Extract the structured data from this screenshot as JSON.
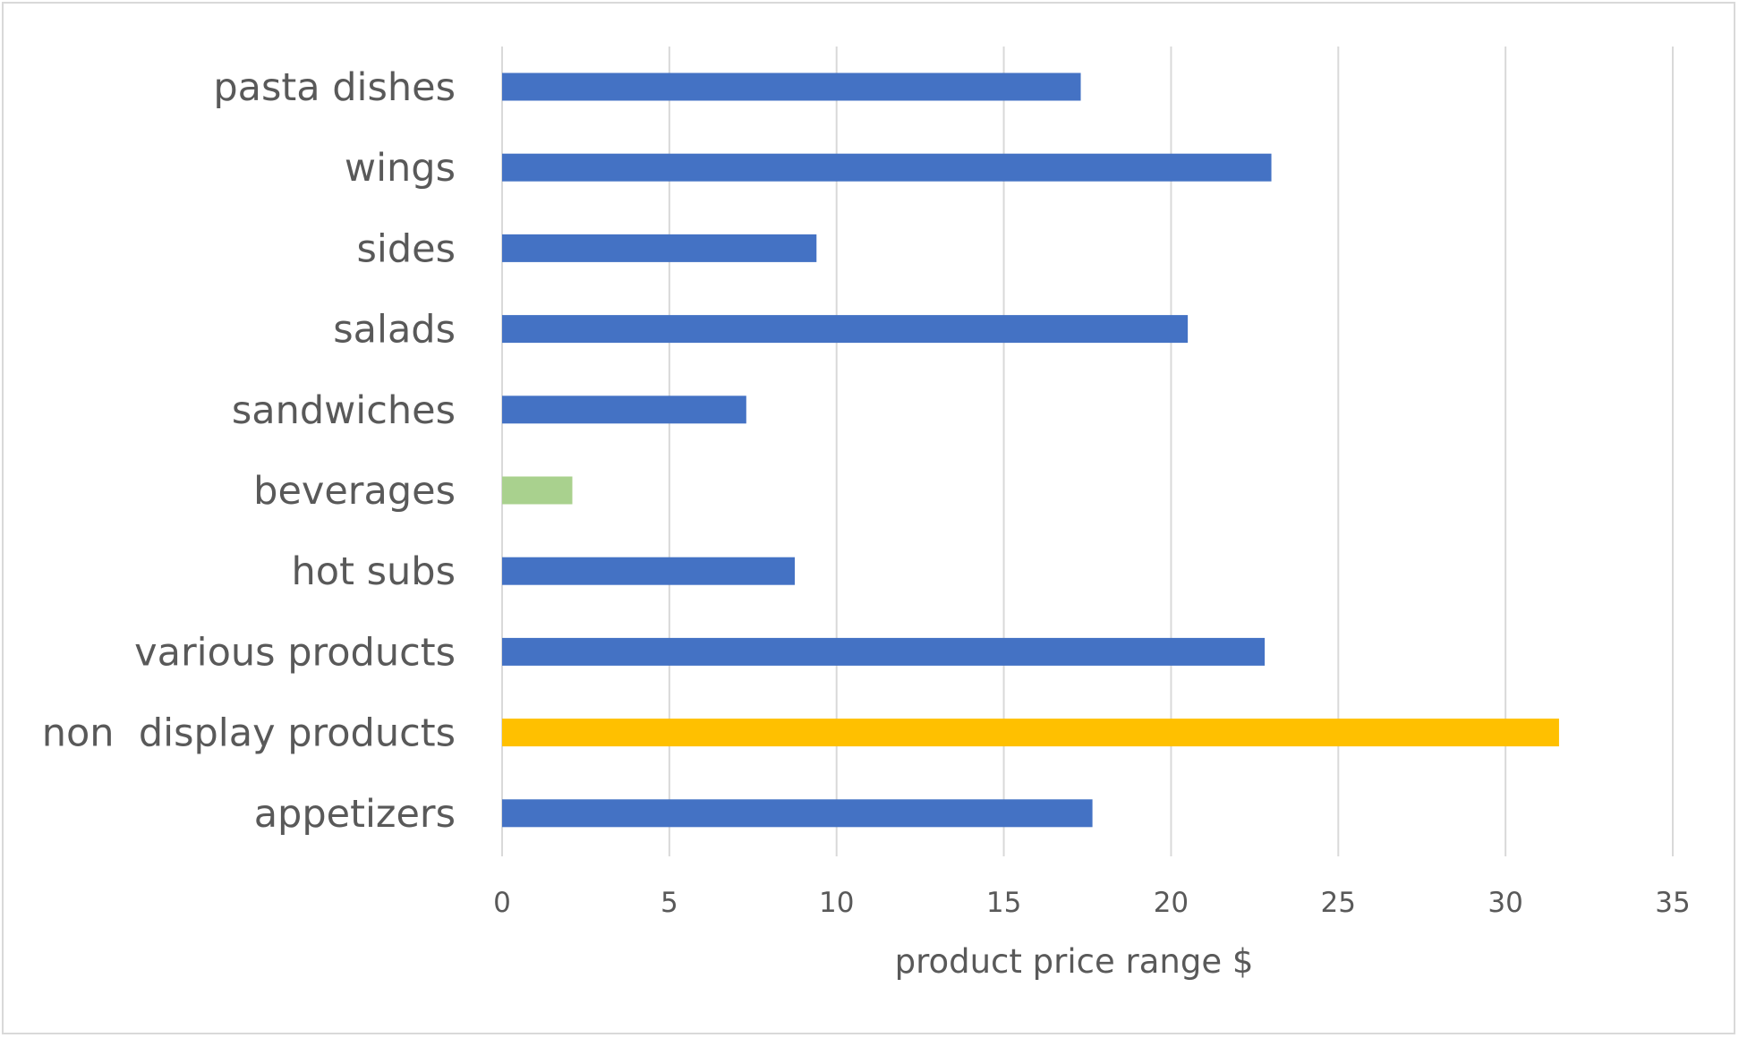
{
  "chart_data": {
    "type": "bar",
    "orientation": "horizontal",
    "title": "",
    "xlabel": "product price range $",
    "ylabel": "",
    "xlim": [
      0,
      35
    ],
    "xticks": [
      0,
      5,
      10,
      15,
      20,
      25,
      30,
      35
    ],
    "grid": true,
    "legend": "none",
    "categories": [
      "pasta dishes",
      "wings",
      "sides",
      "salads",
      "sandwiches",
      "beverages",
      "hot subs",
      "various products",
      "non  display products",
      "appetizers"
    ],
    "values": [
      17.3,
      23.0,
      9.4,
      20.5,
      7.3,
      2.1,
      8.75,
      22.8,
      31.6,
      17.65
    ],
    "colors": [
      "#4472C4",
      "#4472C4",
      "#4472C4",
      "#4472C4",
      "#4472C4",
      "#A9D18E",
      "#4472C4",
      "#4472C4",
      "#FFC000",
      "#4472C4"
    ],
    "gridline_color": "#D9D9D9",
    "text_color": "#595959"
  }
}
